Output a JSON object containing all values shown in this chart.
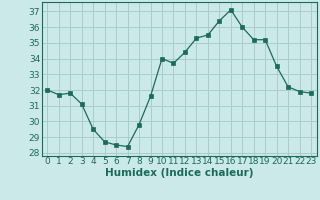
{
  "x": [
    0,
    1,
    2,
    3,
    4,
    5,
    6,
    7,
    8,
    9,
    10,
    11,
    12,
    13,
    14,
    15,
    16,
    17,
    18,
    19,
    20,
    21,
    22,
    23
  ],
  "y": [
    32.0,
    31.7,
    31.8,
    31.1,
    29.5,
    28.7,
    28.5,
    28.4,
    29.8,
    31.6,
    34.0,
    33.7,
    34.4,
    35.3,
    35.5,
    36.4,
    37.1,
    36.0,
    35.2,
    35.2,
    33.5,
    32.2,
    31.9,
    31.8
  ],
  "line_color": "#1a6b5a",
  "marker": "s",
  "marker_size": 2.5,
  "bg_color": "#cce9e9",
  "grid_color": "#aacccc",
  "tick_color": "#1a6b5a",
  "label_color": "#1a6b5a",
  "xlabel": "Humidex (Indice chaleur)",
  "ylim": [
    27.8,
    37.6
  ],
  "yticks": [
    28,
    29,
    30,
    31,
    32,
    33,
    34,
    35,
    36,
    37
  ],
  "xticks": [
    0,
    1,
    2,
    3,
    4,
    5,
    6,
    7,
    8,
    9,
    10,
    11,
    12,
    13,
    14,
    15,
    16,
    17,
    18,
    19,
    20,
    21,
    22,
    23
  ],
  "font_size": 6.5,
  "xlabel_font_size": 7.5
}
